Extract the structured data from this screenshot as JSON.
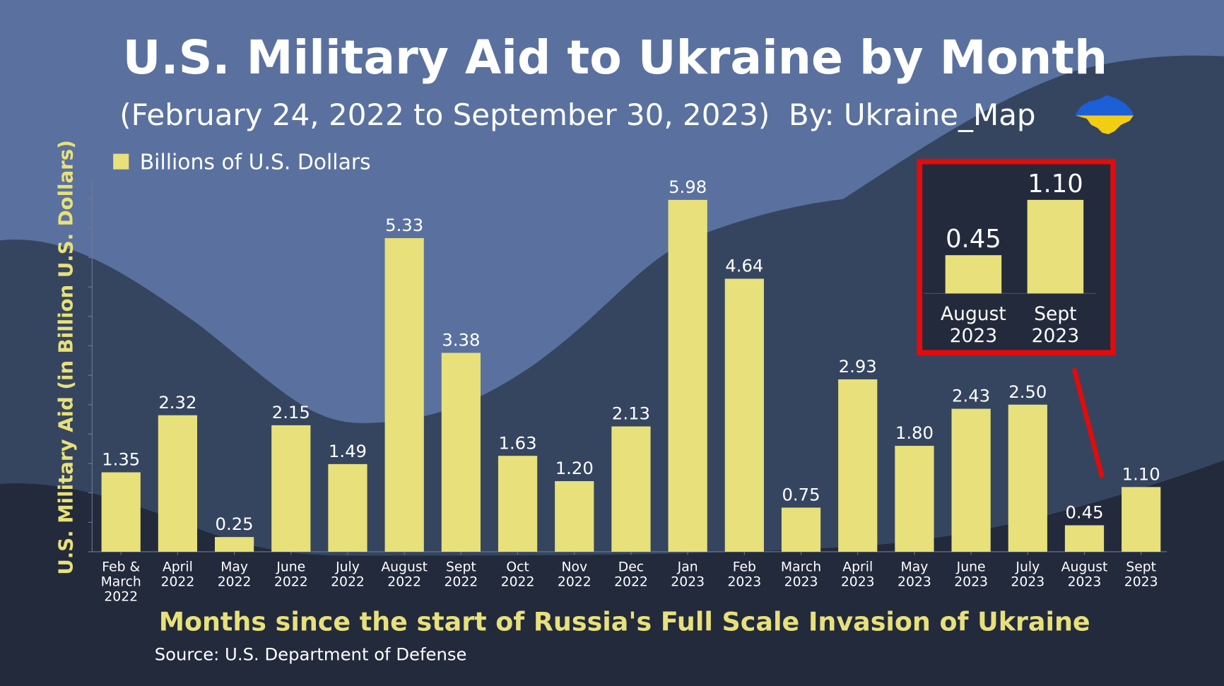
{
  "header": {
    "title": "U.S. Military Aid to Ukraine by Month",
    "subtitle": "(February 24, 2022 to September 30, 2023)  By: Ukraine_Map",
    "flag_icon": "ukraine-map-flag-icon"
  },
  "colors": {
    "bar": "#e8e07a",
    "bg_light": "#5a719f",
    "bg_mid": "#35455f",
    "bg_dark": "#222a3c",
    "highlight_box": "#e30b0b"
  },
  "chart_data": {
    "type": "bar",
    "title": "U.S. Military Aid to Ukraine by Month",
    "xlabel": "Months since the start of Russia's Full Scale Invasion of Ukraine",
    "ylabel": "U.S. Military Aid (in Billion U.S. Dollars)",
    "legend": {
      "label": "Billions of U.S. Dollars",
      "position": "top-left"
    },
    "ylim": [
      0,
      6.3
    ],
    "grid": false,
    "categories": [
      [
        "Feb &",
        "March",
        "2022"
      ],
      [
        "April",
        "2022"
      ],
      [
        "May",
        "2022"
      ],
      [
        "June",
        "2022"
      ],
      [
        "July",
        "2022"
      ],
      [
        "August",
        "2022"
      ],
      [
        "Sept",
        "2022"
      ],
      [
        "Oct",
        "2022"
      ],
      [
        "Nov",
        "2022"
      ],
      [
        "Dec",
        "2022"
      ],
      [
        "Jan",
        "2023"
      ],
      [
        "Feb",
        "2023"
      ],
      [
        "March",
        "2023"
      ],
      [
        "April",
        "2023"
      ],
      [
        "May",
        "2023"
      ],
      [
        "June",
        "2023"
      ],
      [
        "July",
        "2023"
      ],
      [
        "August",
        "2023"
      ],
      [
        "Sept",
        "2023"
      ]
    ],
    "values": [
      1.35,
      2.32,
      0.25,
      2.15,
      1.49,
      5.33,
      3.38,
      1.63,
      1.2,
      2.13,
      5.98,
      4.64,
      0.75,
      2.93,
      1.8,
      2.43,
      2.5,
      0.45,
      1.1
    ],
    "value_labels": [
      "1.35",
      "2.32",
      "0.25",
      "2.15",
      "1.49",
      "5.33",
      "3.38",
      "1.63",
      "1.20",
      "2.13",
      "5.98",
      "4.64",
      "0.75",
      "2.93",
      "1.80",
      "2.43",
      "2.50",
      "0.45",
      "1.10"
    ],
    "inset": {
      "categories": [
        [
          "August",
          "2023"
        ],
        [
          "Sept",
          "2023"
        ]
      ],
      "values": [
        0.45,
        1.1
      ],
      "value_labels": [
        "0.45",
        "1.10"
      ]
    }
  },
  "footer": {
    "source": "Source: U.S. Department of Defense"
  }
}
